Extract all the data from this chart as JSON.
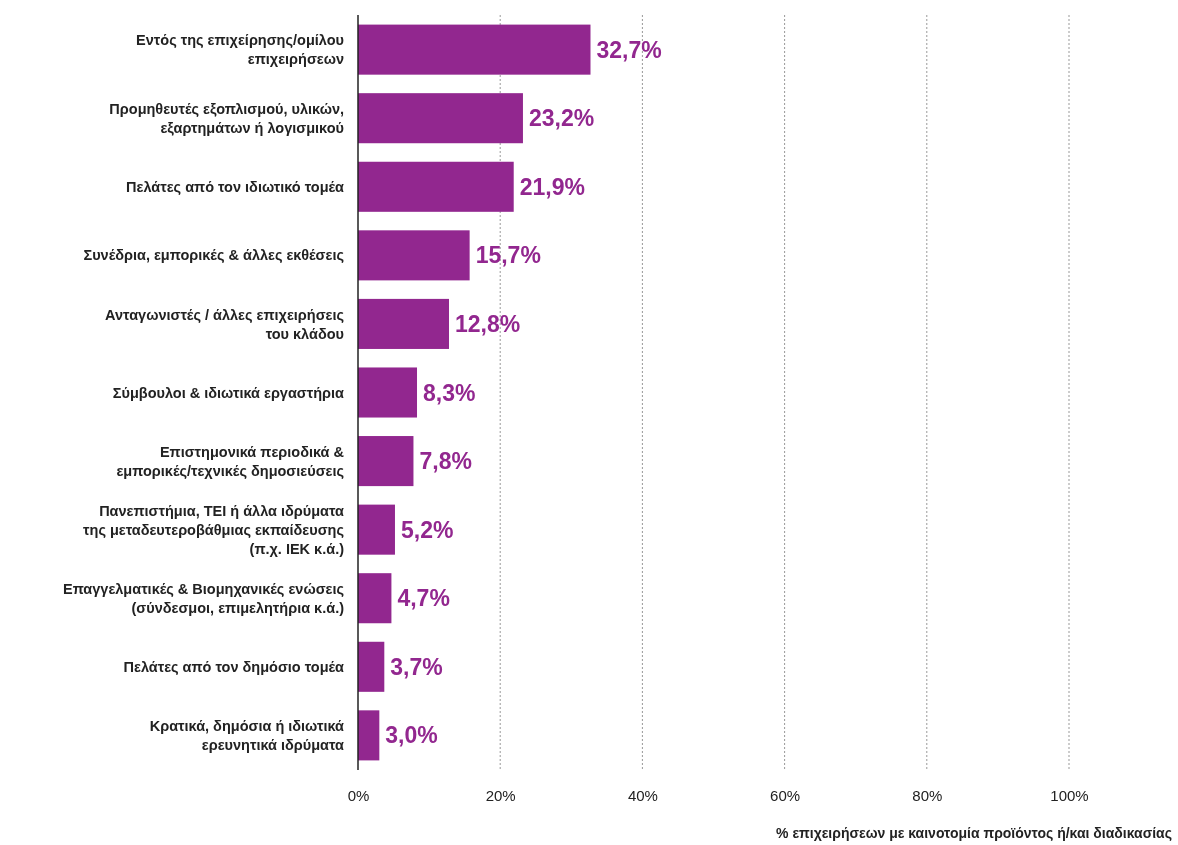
{
  "chart_data": {
    "type": "bar",
    "orientation": "horizontal",
    "xlabel": "% επιχειρήσεων με καινοτομία προϊόντος ή/και διαδικασίας",
    "categories": [
      "Εντός της επιχείρησης/ομίλου\nεπιχειρήσεων",
      "Προμηθευτές εξοπλισμού, υλικών,\nεξαρτημάτων ή λογισμικού",
      "Πελάτες από τον ιδιωτικό τομέα",
      "Συνέδρια, εμπορικές & άλλες εκθέσεις",
      "Ανταγωνιστές / άλλες επιχειρήσεις\nτου κλάδου",
      "Σύμβουλοι & ιδιωτικά εργαστήρια",
      "Επιστημονικά περιοδικά &\nεμπορικές/τεχνικές δημοσιεύσεις",
      "Πανεπιστήμια, ΤΕΙ ή άλλα ιδρύματα\nτης μεταδευτεροβάθμιας εκπαίδευσης\n(π.χ. ΙΕΚ κ.ά.)",
      "Επαγγελματικές & Βιομηχανικές ενώσεις\n(σύνδεσμοι, επιμελητήρια κ.ά.)",
      "Πελάτες από τον δημόσιο τομέα",
      "Κρατικά, δημόσια ή ιδιωτικά\nερευνητικά ιδρύματα"
    ],
    "values": [
      32.7,
      23.2,
      21.9,
      15.7,
      12.8,
      8.3,
      7.8,
      5.2,
      4.7,
      3.7,
      3.0
    ],
    "value_labels": [
      "32,7%",
      "23,2%",
      "21,9%",
      "15,7%",
      "12,8%",
      "8,3%",
      "7,8%",
      "5,2%",
      "4,7%",
      "3,7%",
      "3,0%"
    ],
    "color": "#92278f",
    "xlim": [
      0,
      100
    ],
    "xticks": [
      {
        "value": 0,
        "label": "0%"
      },
      {
        "value": 20,
        "label": "20%"
      },
      {
        "value": 40,
        "label": "40%"
      },
      {
        "value": 60,
        "label": "60%"
      },
      {
        "value": 80,
        "label": "80%"
      },
      {
        "value": 100,
        "label": "100%"
      }
    ],
    "grid": "x"
  }
}
